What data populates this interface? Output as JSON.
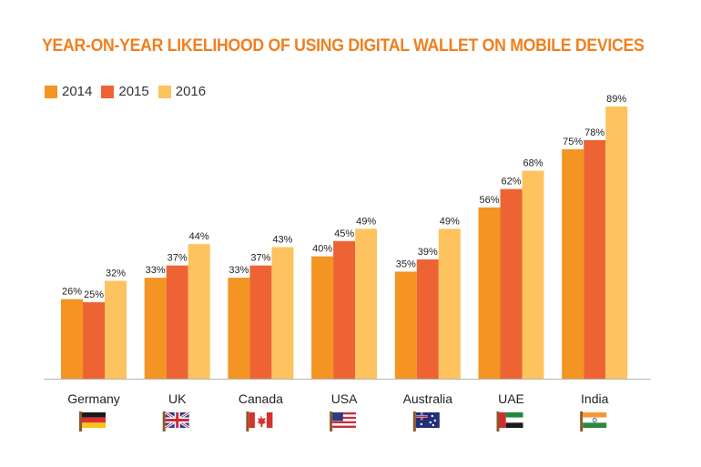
{
  "colors": {
    "title": "#f07f1e",
    "series": [
      "#f39423",
      "#ee6334",
      "#fdc35f"
    ],
    "axis": "#b5b5b5"
  },
  "chart_data": {
    "type": "bar",
    "title": "YEAR-ON-YEAR LIKELIHOOD OF USING DIGITAL WALLET ON MOBILE DEVICES",
    "categories": [
      "Germany",
      "UK",
      "Canada",
      "USA",
      "Australia",
      "UAE",
      "India"
    ],
    "series": [
      {
        "name": "2014",
        "values": [
          26,
          33,
          33,
          40,
          35,
          56,
          75
        ]
      },
      {
        "name": "2015",
        "values": [
          25,
          37,
          37,
          45,
          39,
          62,
          78
        ]
      },
      {
        "name": "2016",
        "values": [
          32,
          44,
          43,
          49,
          49,
          68,
          89
        ]
      }
    ],
    "value_suffix": "%",
    "ylim": [
      0,
      100
    ],
    "grid": false,
    "legend_position": "top-left",
    "flags": [
      "germany-flag-icon",
      "uk-flag-icon",
      "canada-flag-icon",
      "usa-flag-icon",
      "australia-flag-icon",
      "uae-flag-icon",
      "india-flag-icon"
    ]
  }
}
